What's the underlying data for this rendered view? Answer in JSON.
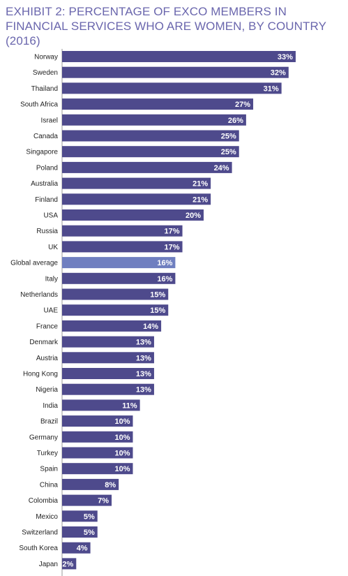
{
  "chart_data": {
    "type": "bar",
    "orientation": "horizontal",
    "title": "EXHIBIT 2: PERCENTAGE OF EXCO MEMBERS IN FINANCIAL SERVICES WHO ARE WOMEN, BY COUNTRY (2016)",
    "xlabel": "",
    "ylabel": "",
    "xlim": [
      0,
      34
    ],
    "grid": false,
    "legend": "none",
    "colors": {
      "bar": "#4e4a8c",
      "highlight": "#6f7fc0",
      "title": "#6a66ad"
    },
    "categories": [
      "Norway",
      "Sweden",
      "Thailand",
      "South Africa",
      "Israel",
      "Canada",
      "Singapore",
      "Poland",
      "Australia",
      "Finland",
      "USA",
      "Russia",
      "UK",
      "Global average",
      "Italy",
      "Netherlands",
      "UAE",
      "France",
      "Denmark",
      "Austria",
      "Hong Kong",
      "Nigeria",
      "India",
      "Brazil",
      "Germany",
      "Turkey",
      "Spain",
      "China",
      "Colombia",
      "Mexico",
      "Switzerland",
      "South Korea",
      "Japan"
    ],
    "values": [
      33,
      32,
      31,
      27,
      26,
      25,
      25,
      24,
      21,
      21,
      20,
      17,
      17,
      16,
      16,
      15,
      15,
      14,
      13,
      13,
      13,
      13,
      11,
      10,
      10,
      10,
      10,
      8,
      7,
      5,
      5,
      4,
      2
    ],
    "labels": [
      "33%",
      "32%",
      "31%",
      "27%",
      "26%",
      "25%",
      "25%",
      "24%",
      "21%",
      "21%",
      "20%",
      "17%",
      "17%",
      "16%",
      "16%",
      "15%",
      "15%",
      "14%",
      "13%",
      "13%",
      "13%",
      "13%",
      "11%",
      "10%",
      "10%",
      "10%",
      "10%",
      "8%",
      "7%",
      "5%",
      "5%",
      "4%",
      "2%"
    ],
    "highlight": "Global average"
  }
}
